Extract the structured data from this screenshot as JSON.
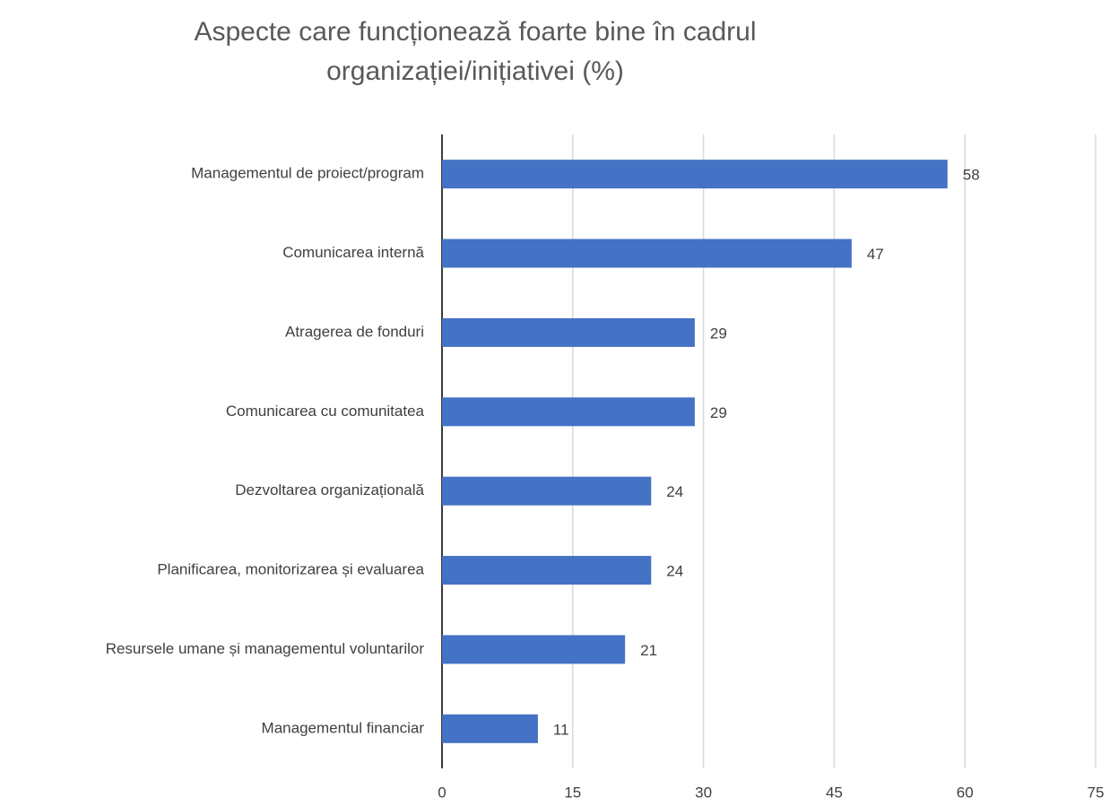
{
  "chart_data": {
    "type": "bar",
    "orientation": "horizontal",
    "title": "Aspecte care funcționează foarte bine în cadrul organizației/inițiativei (%)",
    "categories": [
      "Managementul de proiect/program",
      "Comunicarea internă",
      "Atragerea de fonduri",
      "Comunicarea cu comunitatea",
      "Dezvoltarea organizațională",
      "Planificarea, monitorizarea și evaluarea",
      "Resursele umane și managementul voluntarilor",
      "Managementul financiar"
    ],
    "values": [
      58,
      47,
      29,
      29,
      24,
      24,
      21,
      11
    ],
    "color": "#4472c4",
    "xlim": [
      0,
      75
    ],
    "xticks": [
      0,
      15,
      30,
      45,
      60,
      75
    ],
    "grid": true
  }
}
